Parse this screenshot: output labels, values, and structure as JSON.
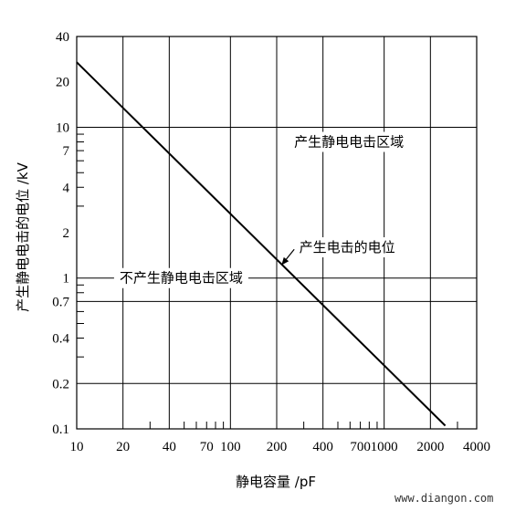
{
  "chart_data": {
    "type": "line",
    "xlabel": "静电容量 /pF",
    "ylabel": "产生静电电击的电位 /kV",
    "x_scale": "log",
    "y_scale": "log",
    "xlim": [
      10,
      4000
    ],
    "ylim": [
      0.1,
      40
    ],
    "x_tick_labels": [
      {
        "value": 10,
        "label": "10"
      },
      {
        "value": 20,
        "label": "20"
      },
      {
        "value": 40,
        "label": "40"
      },
      {
        "value": 70,
        "label": "70"
      },
      {
        "value": 100,
        "label": "100"
      },
      {
        "value": 200,
        "label": "200"
      },
      {
        "value": 400,
        "label": "400"
      },
      {
        "value": 700,
        "label": "700"
      },
      {
        "value": 1000,
        "label": "1000"
      },
      {
        "value": 2000,
        "label": "2000"
      },
      {
        "value": 4000,
        "label": "4000"
      }
    ],
    "y_tick_labels": [
      {
        "value": 40,
        "label": "40"
      },
      {
        "value": 20,
        "label": "20"
      },
      {
        "value": 10,
        "label": "10"
      },
      {
        "value": 7,
        "label": "7"
      },
      {
        "value": 4,
        "label": "4"
      },
      {
        "value": 2,
        "label": "2"
      },
      {
        "value": 1,
        "label": "1"
      },
      {
        "value": 0.7,
        "label": "0.7"
      },
      {
        "value": 0.4,
        "label": "0.4"
      },
      {
        "value": 0.2,
        "label": "0.2"
      },
      {
        "value": 0.1,
        "label": "0.1"
      }
    ],
    "x_gridlines": [
      10,
      20,
      40,
      100,
      200,
      400,
      1000,
      2000,
      4000
    ],
    "y_gridlines": [
      0.1,
      0.2,
      0.7,
      1,
      10,
      40
    ],
    "x_minor_ticks": [
      30,
      50,
      60,
      70,
      80,
      90,
      300,
      500,
      600,
      700,
      800,
      900,
      3000
    ],
    "y_minor_ticks": [
      0.3,
      0.4,
      0.5,
      0.6,
      0.8,
      0.9,
      3,
      4,
      5,
      6,
      7,
      8,
      9
    ],
    "series": [
      {
        "x": [
          10,
          2500
        ],
        "y": [
          27,
          0.105
        ],
        "color": "#000000"
      }
    ],
    "annotations": [
      {
        "text": "产生静电电击区域",
        "x": 260,
        "y": 8
      },
      {
        "text": "不产生静电电击区域",
        "x": 19,
        "y": 1
      },
      {
        "text": "产生电击的电位",
        "x": 280,
        "y": 1.6
      },
      {
        "arrow": {
          "from_x": 260,
          "from_y": 1.55,
          "to_x": 215,
          "to_y": 1.22
        }
      }
    ],
    "grid": true
  },
  "watermark": "www.diangon.com"
}
